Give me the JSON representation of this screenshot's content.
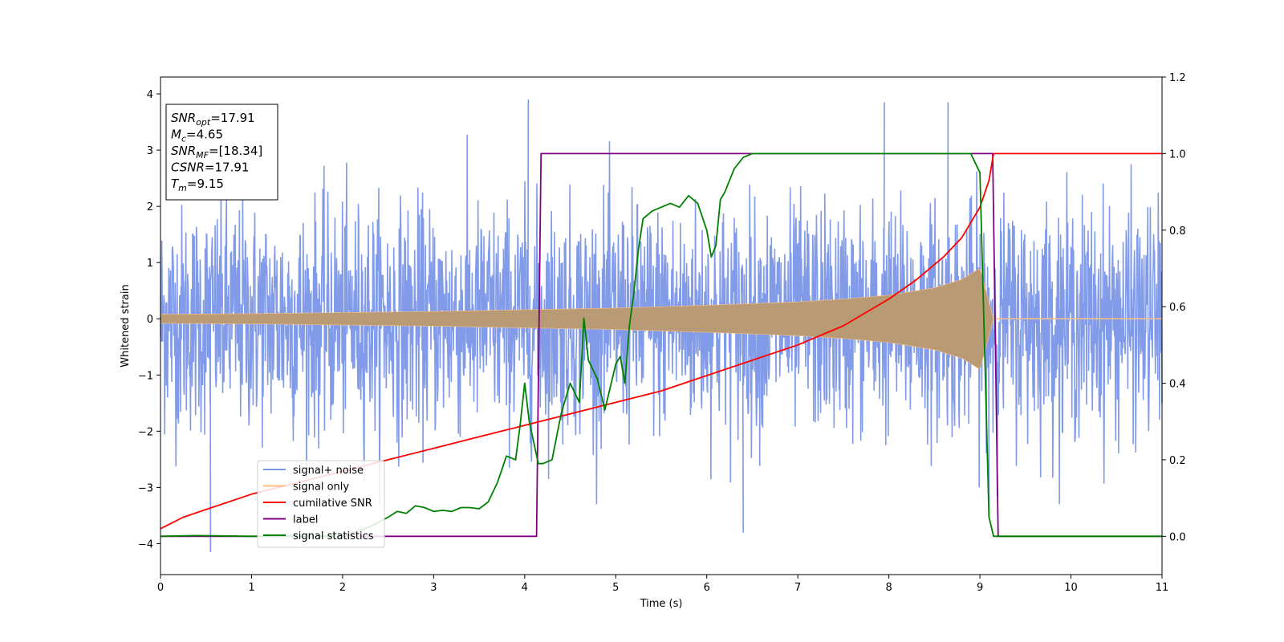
{
  "chart_data": {
    "type": "line",
    "title": "",
    "xlabel": "Time (s)",
    "ylabel": "Whitened strain",
    "xlim": [
      0,
      11
    ],
    "ylim": [
      -4.55,
      4.3
    ],
    "y2lim": [
      -0.1,
      1.2
    ],
    "xticks": [
      0,
      1,
      2,
      3,
      4,
      5,
      6,
      7,
      8,
      9,
      10,
      11
    ],
    "yticks": [
      -4,
      -3,
      -2,
      -1,
      0,
      1,
      2,
      3,
      4
    ],
    "y2ticks": [
      "0.0",
      "0.2",
      "0.4",
      "0.6",
      "0.8",
      "1.0",
      "1.2"
    ],
    "grid": false,
    "legend_position": "lower-left",
    "info_box": {
      "position": "upper-left",
      "lines": [
        {
          "main": "SNR",
          "sub": "opt",
          "value": "=17.91"
        },
        {
          "main": "M",
          "sub": "c",
          "value": "=4.65"
        },
        {
          "main": "SNR",
          "sub": "MF",
          "value": "=[18.34]"
        },
        {
          "main": "CSNR",
          "sub": "",
          "value": "=17.91"
        },
        {
          "main": "T",
          "sub": "m",
          "value": "=9.15"
        }
      ]
    },
    "series": [
      {
        "name": "signal+ noise",
        "axis": "left",
        "color": "#7a96e8",
        "kind": "noise-envelope",
        "x_range": [
          0,
          11
        ],
        "typical_amplitude": [
          -2.5,
          2.5
        ],
        "peaks": [
          {
            "x": 0.55,
            "y": -4.15
          },
          {
            "x": 4.04,
            "y": 3.9
          },
          {
            "x": 7.95,
            "y": 3.85
          },
          {
            "x": 8.65,
            "y": 3.85
          },
          {
            "x": 9.1,
            "y": -3.5
          },
          {
            "x": 6.4,
            "y": -3.8
          }
        ]
      },
      {
        "name": "signal only",
        "axis": "left",
        "color": "#ffbf80",
        "kind": "chirp-envelope",
        "x": [
          0,
          1,
          2,
          3,
          4,
          5,
          6,
          7,
          7.5,
          8,
          8.5,
          8.8,
          9.0,
          9.15,
          11
        ],
        "amplitude": [
          0.08,
          0.09,
          0.11,
          0.13,
          0.16,
          0.19,
          0.24,
          0.3,
          0.35,
          0.42,
          0.55,
          0.7,
          0.9,
          0.0,
          0.0
        ]
      },
      {
        "name": "cumilative SNR",
        "axis": "right",
        "color": "#ff0000",
        "x": [
          0,
          0.25,
          0.5,
          1,
          1.5,
          2,
          2.5,
          3,
          3.5,
          4,
          4.5,
          5,
          5.5,
          6,
          6.5,
          7,
          7.5,
          8,
          8.3,
          8.6,
          8.8,
          9.0,
          9.1,
          9.15,
          11
        ],
        "y": [
          0.02,
          0.05,
          0.07,
          0.11,
          0.14,
          0.17,
          0.2,
          0.23,
          0.26,
          0.29,
          0.32,
          0.35,
          0.38,
          0.42,
          0.46,
          0.5,
          0.55,
          0.62,
          0.67,
          0.73,
          0.78,
          0.86,
          0.93,
          1.0,
          1.0
        ]
      },
      {
        "name": "label",
        "axis": "right",
        "color": "#800080",
        "x": [
          0,
          4.13,
          4.18,
          9.14,
          9.2,
          11
        ],
        "y": [
          0.0,
          0.0,
          1.0,
          1.0,
          0.0,
          0.0
        ]
      },
      {
        "name": "signal statistics",
        "axis": "right",
        "color": "#008000",
        "x": [
          0,
          0.4,
          1,
          2,
          2.3,
          2.5,
          2.6,
          2.7,
          2.8,
          2.9,
          3.0,
          3.1,
          3.2,
          3.3,
          3.4,
          3.5,
          3.6,
          3.7,
          3.8,
          3.9,
          3.95,
          4.0,
          4.05,
          4.15,
          4.2,
          4.3,
          4.4,
          4.5,
          4.6,
          4.65,
          4.7,
          4.8,
          4.88,
          5.0,
          5.05,
          5.1,
          5.15,
          5.2,
          5.25,
          5.3,
          5.4,
          5.5,
          5.6,
          5.7,
          5.8,
          5.9,
          6.0,
          6.05,
          6.1,
          6.15,
          6.2,
          6.3,
          6.4,
          6.5,
          6.6,
          7.0,
          7.5,
          8.0,
          8.5,
          8.9,
          9.0,
          9.05,
          9.1,
          9.15,
          9.2,
          11
        ],
        "y": [
          0.0,
          0.002,
          0.0,
          0.0,
          0.025,
          0.05,
          0.065,
          0.06,
          0.08,
          0.075,
          0.065,
          0.068,
          0.065,
          0.075,
          0.075,
          0.072,
          0.09,
          0.14,
          0.21,
          0.2,
          0.29,
          0.4,
          0.3,
          0.19,
          0.19,
          0.2,
          0.32,
          0.4,
          0.35,
          0.57,
          0.46,
          0.41,
          0.33,
          0.45,
          0.47,
          0.4,
          0.55,
          0.64,
          0.75,
          0.83,
          0.85,
          0.86,
          0.87,
          0.86,
          0.89,
          0.87,
          0.8,
          0.73,
          0.76,
          0.88,
          0.9,
          0.96,
          0.99,
          1.0,
          1.0,
          1.0,
          1.0,
          1.0,
          1.0,
          1.0,
          0.95,
          0.5,
          0.05,
          0.0,
          0.0,
          0.0
        ]
      }
    ]
  }
}
